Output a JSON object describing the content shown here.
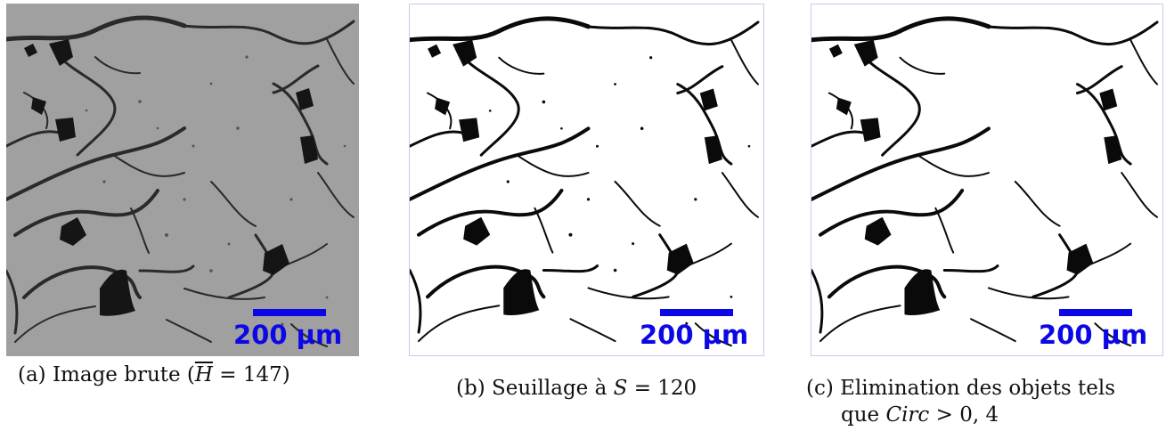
{
  "colors": {
    "scale_bar": "#0b07e6",
    "raw_background": "#a0a0a0",
    "binary_background": "#ffffff",
    "pore": "#0a0a0a",
    "frame": "#c8c8f0"
  },
  "panels": [
    {
      "id": "a",
      "type": "raw-grayscale-micrograph",
      "scale_bar_label": "200 µm",
      "caption": {
        "prefix": "(a) Image brute (",
        "var": "H",
        "rel": " = 147)"
      }
    },
    {
      "id": "b",
      "type": "thresholded-binary-image",
      "scale_bar_label": "200 µm",
      "caption": {
        "prefix": "(b) Seuillage à ",
        "var": "S",
        "rel": " = 120"
      }
    },
    {
      "id": "c",
      "type": "filtered-binary-image",
      "scale_bar_label": "200 µm",
      "caption": {
        "line1": "(c) Elimination des objets tels",
        "line2_prefix": "que ",
        "var": "Circ",
        "rel": " > 0, 4"
      }
    }
  ]
}
